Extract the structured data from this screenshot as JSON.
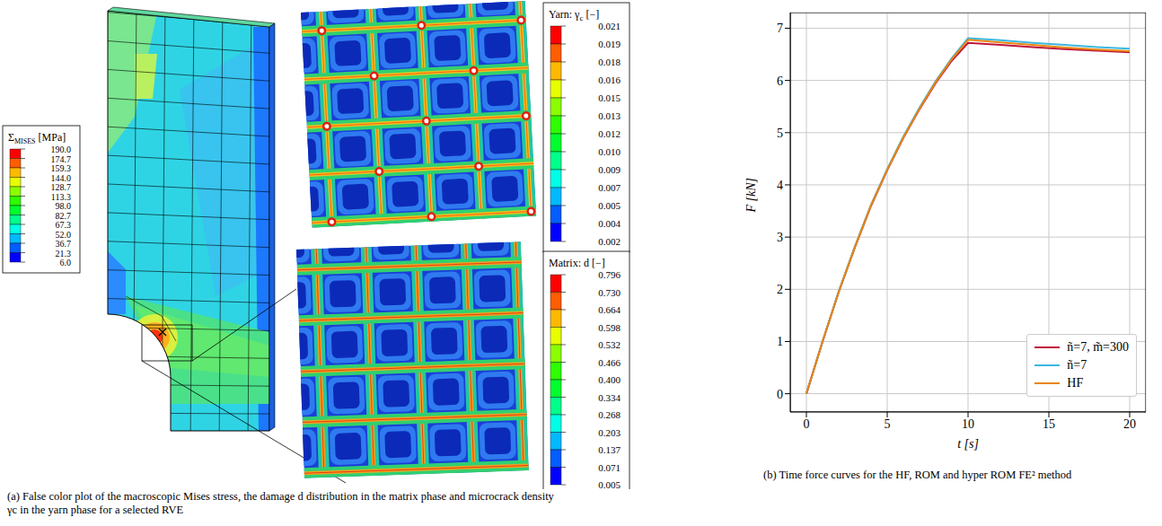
{
  "panel_a": {
    "caption": "(a) False color plot of the macroscopic Mises stress, the damage d distribution in the matrix phase and microcrack density γc in the yarn phase for a selected RVE",
    "colorbars": [
      {
        "title": "Σ",
        "subscript": "Mises",
        "unit": "[MPa]",
        "labels": [
          "190.0",
          "174.7",
          "159.3",
          "144.0",
          "128.7",
          "113.3",
          "98.0",
          "82.7",
          "67.3",
          "52.0",
          "36.7",
          "21.3",
          "6.0"
        ]
      },
      {
        "title": "Yarn: γ",
        "subscript": "c",
        "unit": "[−]",
        "labels": [
          "0.021",
          "0.019",
          "0.018",
          "0.016",
          "0.015",
          "0.013",
          "0.012",
          "0.010",
          "0.009",
          "0.007",
          "0.005",
          "0.004",
          "0.002"
        ]
      },
      {
        "title": "Matrix: d",
        "unit": "[−]",
        "labels": [
          "0.796",
          "0.730",
          "0.664",
          "0.598",
          "0.532",
          "0.466",
          "0.400",
          "0.334",
          "0.268",
          "0.203",
          "0.137",
          "0.071",
          "0.005"
        ]
      }
    ]
  },
  "panel_b": {
    "caption": "(b) Time force curves for the HF, ROM and hyper ROM FE² method"
  },
  "chart_data": {
    "type": "line",
    "x": [
      0,
      1,
      2,
      3,
      4,
      5,
      6,
      7,
      8,
      9,
      10,
      12,
      14,
      16,
      18,
      20
    ],
    "series": [
      {
        "name": "ñ=7, m̃=300",
        "color": "#c0143c",
        "values": [
          0,
          1.0,
          1.95,
          2.8,
          3.6,
          4.28,
          4.9,
          5.45,
          5.95,
          6.38,
          6.72,
          6.68,
          6.64,
          6.6,
          6.57,
          6.54
        ]
      },
      {
        "name": "ñ=7",
        "color": "#3bb8e0",
        "values": [
          0,
          1.0,
          1.96,
          2.82,
          3.62,
          4.3,
          4.93,
          5.48,
          5.99,
          6.43,
          6.81,
          6.77,
          6.72,
          6.68,
          6.64,
          6.61
        ]
      },
      {
        "name": "HF",
        "color": "#e8850f",
        "values": [
          0,
          1.0,
          1.95,
          2.81,
          3.61,
          4.29,
          4.91,
          5.46,
          5.97,
          6.41,
          6.78,
          6.73,
          6.68,
          6.63,
          6.59,
          6.56
        ]
      }
    ],
    "xlim": [
      -1,
      21
    ],
    "ylim": [
      -0.35,
      7.3
    ],
    "xticks": [
      0,
      5,
      10,
      15,
      20
    ],
    "yticks": [
      0,
      1,
      2,
      3,
      4,
      5,
      6,
      7
    ],
    "x_label": "t [s]",
    "y_label": "F [kN]",
    "grid": true,
    "legend": "lower right"
  }
}
